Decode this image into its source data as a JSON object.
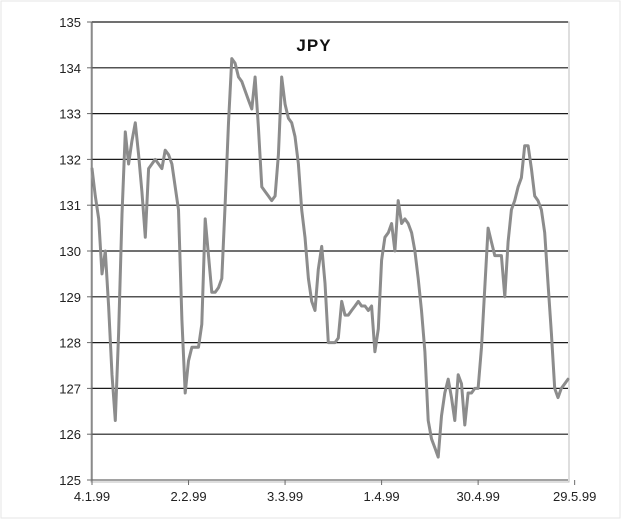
{
  "chart_data": {
    "type": "line",
    "title": "JPY",
    "xlabel": "",
    "ylabel": "",
    "ylim": [
      125,
      135
    ],
    "y_ticks": [
      125,
      126,
      127,
      128,
      129,
      130,
      131,
      132,
      133,
      134,
      135
    ],
    "x_tick_labels": [
      "4.1.99",
      "2.2.99",
      "3.3.99",
      "1.4.99",
      "30.4.99",
      "29.5.99"
    ],
    "x_tick_indices": [
      0,
      29,
      58,
      87,
      116,
      145
    ],
    "grid": "horizontal",
    "legend": "none",
    "series": [
      {
        "values": [
          131.8,
          131.2,
          130.7,
          129.5,
          130.0,
          128.8,
          127.3,
          126.3,
          128.2,
          130.8,
          132.6,
          131.9,
          132.4,
          132.8,
          132.1,
          131.3,
          130.3,
          131.8,
          131.9,
          132.0,
          131.9,
          131.8,
          132.2,
          132.1,
          131.9,
          131.4,
          130.9,
          128.5,
          126.9,
          127.6,
          127.9,
          127.9,
          127.9,
          128.4,
          130.7,
          129.9,
          129.1,
          129.1,
          129.2,
          129.4,
          131.0,
          132.8,
          134.2,
          134.1,
          133.8,
          133.7,
          133.5,
          133.3,
          133.1,
          133.8,
          132.7,
          131.4,
          131.3,
          131.2,
          131.1,
          131.2,
          132.1,
          133.8,
          133.2,
          132.9,
          132.8,
          132.5,
          131.9,
          130.9,
          130.3,
          129.4,
          128.9,
          128.7,
          129.6,
          130.1,
          129.3,
          128.0,
          128.0,
          128.0,
          128.1,
          128.9,
          128.6,
          128.6,
          128.7,
          128.8,
          128.9,
          128.8,
          128.8,
          128.7,
          128.8,
          127.8,
          128.3,
          129.8,
          130.3,
          130.4,
          130.6,
          130.0,
          131.1,
          130.6,
          130.7,
          130.6,
          130.4,
          130.0,
          129.4,
          128.7,
          127.8,
          126.3,
          125.9,
          125.7,
          125.5,
          126.4,
          126.9,
          127.2,
          126.8,
          126.3,
          127.3,
          127.1,
          126.2,
          126.9,
          126.9,
          127.0,
          127.0,
          127.9,
          129.2,
          130.5,
          130.2,
          129.9,
          129.9,
          129.9,
          129.0,
          130.2,
          130.9,
          131.1,
          131.4,
          131.6,
          132.3,
          132.3,
          131.8,
          131.2,
          131.1,
          130.9,
          130.4,
          129.3,
          128.2,
          127.0,
          126.8,
          127.0,
          127.1,
          127.2
        ]
      }
    ]
  },
  "colors": {
    "line": "#8c8c8c",
    "gridline": "#1a1a1a",
    "axis": "#6a6a6a",
    "plot_border": "#bdbdbd"
  }
}
